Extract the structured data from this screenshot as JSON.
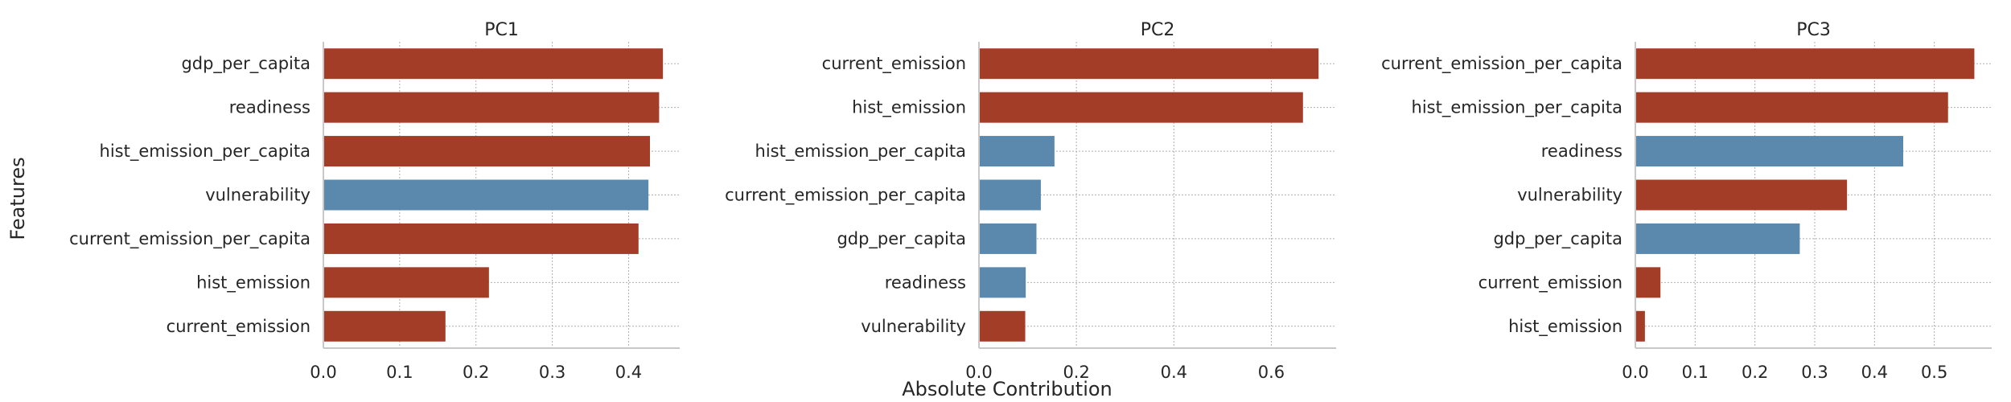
{
  "colors": {
    "positive": "#a43d27",
    "negative": "#5b88ad"
  },
  "figure": {
    "ylabel": "Features",
    "xlabel": "Absolute Contribution"
  },
  "chart_data": [
    {
      "type": "bar",
      "orientation": "horizontal",
      "title": "PC1",
      "categories": [
        "gdp_per_capita",
        "readiness",
        "hist_emission_per_capita",
        "vulnerability",
        "current_emission_per_capita",
        "hist_emission",
        "current_emission"
      ],
      "values": [
        0.445,
        0.44,
        0.428,
        0.426,
        0.413,
        0.217,
        0.16
      ],
      "sign": [
        "positive",
        "positive",
        "positive",
        "negative",
        "positive",
        "positive",
        "positive"
      ],
      "xticks": [
        "0.0",
        "0.1",
        "0.2",
        "0.3",
        "0.4"
      ],
      "xlim": [
        0,
        0.467
      ],
      "grid": true
    },
    {
      "type": "bar",
      "orientation": "horizontal",
      "title": "PC2",
      "categories": [
        "current_emission",
        "hist_emission",
        "hist_emission_per_capita",
        "current_emission_per_capita",
        "gdp_per_capita",
        "readiness",
        "vulnerability"
      ],
      "values": [
        0.697,
        0.665,
        0.155,
        0.127,
        0.118,
        0.096,
        0.095
      ],
      "sign": [
        "positive",
        "positive",
        "negative",
        "negative",
        "negative",
        "negative",
        "positive"
      ],
      "xticks": [
        "0.0",
        "0.2",
        "0.4",
        "0.6"
      ],
      "xlim": [
        0,
        0.733
      ],
      "grid": true
    },
    {
      "type": "bar",
      "orientation": "horizontal",
      "title": "PC3",
      "categories": [
        "current_emission_per_capita",
        "hist_emission_per_capita",
        "readiness",
        "vulnerability",
        "gdp_per_capita",
        "current_emission",
        "hist_emission"
      ],
      "values": [
        0.567,
        0.523,
        0.448,
        0.354,
        0.275,
        0.042,
        0.016
      ],
      "sign": [
        "positive",
        "positive",
        "negative",
        "positive",
        "negative",
        "positive",
        "positive"
      ],
      "xticks": [
        "0.0",
        "0.1",
        "0.2",
        "0.3",
        "0.4",
        "0.5"
      ],
      "xlim": [
        0,
        0.596
      ],
      "grid": true
    }
  ]
}
